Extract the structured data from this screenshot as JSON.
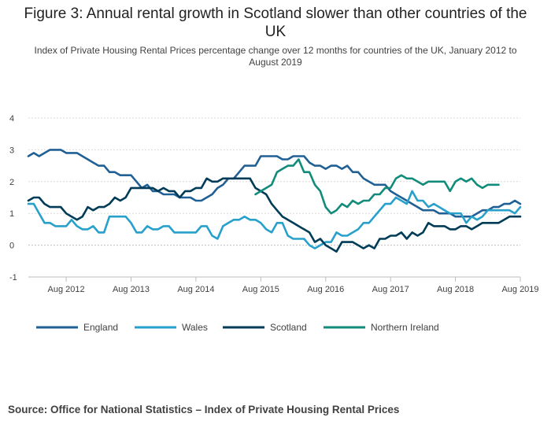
{
  "title": "Figure 3: Annual rental growth in Scotland slower than other countries of the UK",
  "subtitle": "Index of Private Housing Rental Prices percentage change over 12 months for countries of the UK, January 2012 to August 2019",
  "source": "Source: Office for National Statistics – Index of Private Housing Rental Prices",
  "chart_data": {
    "type": "line",
    "xlabel": "",
    "ylabel": "",
    "ylim": [
      -1,
      4
    ],
    "yticks": [
      -1,
      0,
      1,
      2,
      3,
      4
    ],
    "xticks": [
      {
        "label": "Aug 2012",
        "month": 7
      },
      {
        "label": "Aug 2013",
        "month": 19
      },
      {
        "label": "Aug 2014",
        "month": 31
      },
      {
        "label": "Aug 2015",
        "month": 43
      },
      {
        "label": "Aug 2016",
        "month": 55
      },
      {
        "label": "Aug 2017",
        "month": 67
      },
      {
        "label": "Aug 2018",
        "month": 79
      },
      {
        "label": "Aug 2019",
        "month": 91
      }
    ],
    "x_start": "Jan 2012",
    "x_end": "Aug 2019",
    "grid": "horizontal",
    "legend_position": "bottom",
    "series": [
      {
        "name": "England",
        "color": "#206095",
        "start": "Jan 2012",
        "values": [
          2.8,
          2.9,
          2.8,
          2.9,
          3.0,
          3.0,
          3.0,
          2.9,
          2.9,
          2.9,
          2.8,
          2.7,
          2.6,
          2.5,
          2.5,
          2.3,
          2.3,
          2.2,
          2.2,
          2.2,
          2.0,
          1.8,
          1.9,
          1.7,
          1.7,
          1.6,
          1.6,
          1.6,
          1.5,
          1.5,
          1.5,
          1.4,
          1.4,
          1.5,
          1.6,
          1.8,
          1.9,
          2.1,
          2.1,
          2.3,
          2.5,
          2.5,
          2.5,
          2.8,
          2.8,
          2.8,
          2.8,
          2.7,
          2.7,
          2.8,
          2.8,
          2.8,
          2.6,
          2.5,
          2.5,
          2.4,
          2.5,
          2.5,
          2.4,
          2.5,
          2.3,
          2.3,
          2.1,
          2.0,
          1.9,
          1.9,
          1.9,
          1.7,
          1.6,
          1.5,
          1.4,
          1.3,
          1.2,
          1.1,
          1.1,
          1.1,
          1.0,
          1.0,
          1.0,
          0.9,
          0.9,
          0.9,
          0.9,
          1.0,
          1.1,
          1.1,
          1.2,
          1.2,
          1.3,
          1.3,
          1.4,
          1.3
        ]
      },
      {
        "name": "Wales",
        "color": "#27a0cc",
        "start": "Jan 2012",
        "values": [
          1.3,
          1.3,
          1.0,
          0.7,
          0.7,
          0.6,
          0.6,
          0.6,
          0.8,
          0.6,
          0.5,
          0.5,
          0.6,
          0.4,
          0.4,
          0.9,
          0.9,
          0.9,
          0.9,
          0.7,
          0.4,
          0.4,
          0.6,
          0.5,
          0.5,
          0.6,
          0.6,
          0.4,
          0.4,
          0.4,
          0.4,
          0.4,
          0.6,
          0.6,
          0.3,
          0.2,
          0.6,
          0.7,
          0.8,
          0.8,
          0.9,
          0.8,
          0.8,
          0.7,
          0.5,
          0.4,
          0.7,
          0.7,
          0.3,
          0.2,
          0.2,
          0.2,
          0.0,
          -0.1,
          0.0,
          0.1,
          0.1,
          0.4,
          0.3,
          0.3,
          0.4,
          0.5,
          0.7,
          0.7,
          0.9,
          1.1,
          1.3,
          1.3,
          1.5,
          1.4,
          1.3,
          1.7,
          1.4,
          1.4,
          1.2,
          1.3,
          1.2,
          1.1,
          1.0,
          1.0,
          1.0,
          0.7,
          0.9,
          0.8,
          0.9,
          1.1,
          1.1,
          1.1,
          1.1,
          1.1,
          1.0,
          1.2
        ]
      },
      {
        "name": "Scotland",
        "color": "#003c57",
        "start": "Jan 2012",
        "values": [
          1.4,
          1.5,
          1.5,
          1.3,
          1.2,
          1.2,
          1.2,
          1.0,
          0.9,
          0.8,
          0.9,
          1.2,
          1.1,
          1.2,
          1.2,
          1.3,
          1.5,
          1.4,
          1.5,
          1.8,
          1.8,
          1.8,
          1.8,
          1.8,
          1.7,
          1.8,
          1.7,
          1.7,
          1.5,
          1.7,
          1.7,
          1.8,
          1.8,
          2.1,
          2.0,
          2.0,
          2.1,
          2.1,
          2.1,
          2.1,
          2.1,
          2.1,
          1.8,
          1.7,
          1.6,
          1.3,
          1.1,
          0.9,
          0.8,
          0.7,
          0.6,
          0.5,
          0.4,
          0.1,
          0.2,
          0.0,
          -0.1,
          -0.2,
          0.1,
          0.1,
          0.1,
          0.0,
          -0.1,
          0.0,
          -0.1,
          0.2,
          0.2,
          0.3,
          0.3,
          0.4,
          0.2,
          0.4,
          0.3,
          0.4,
          0.7,
          0.6,
          0.6,
          0.6,
          0.5,
          0.5,
          0.6,
          0.6,
          0.5,
          0.6,
          0.7,
          0.7,
          0.7,
          0.7,
          0.8,
          0.9,
          0.9,
          0.9
        ]
      },
      {
        "name": "Northern Ireland",
        "color": "#118c7b",
        "start": "Jul 2015",
        "values": [
          1.6,
          1.7,
          1.8,
          1.9,
          2.3,
          2.4,
          2.5,
          2.5,
          2.7,
          2.3,
          2.3,
          1.9,
          1.7,
          1.2,
          1.0,
          1.1,
          1.3,
          1.2,
          1.4,
          1.3,
          1.4,
          1.4,
          1.6,
          1.6,
          1.8,
          1.8,
          2.1,
          2.2,
          2.1,
          2.1,
          2.0,
          1.9,
          2.0,
          2.0,
          2.0,
          2.0,
          1.7,
          2.0,
          2.1,
          2.0,
          2.1,
          1.9,
          1.8,
          1.9,
          1.9,
          1.9
        ]
      }
    ]
  }
}
